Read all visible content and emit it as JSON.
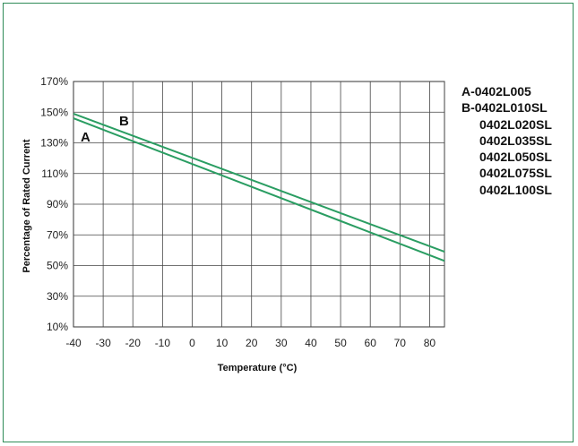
{
  "chart_data": {
    "type": "line",
    "xlabel": "Temperature (°C)",
    "ylabel": "Percentage of Rated Current",
    "xlim": [
      -40,
      85
    ],
    "ylim": [
      10,
      170
    ],
    "xticks": [
      -40,
      -30,
      -20,
      -10,
      0,
      10,
      20,
      30,
      40,
      50,
      60,
      70,
      80
    ],
    "yticks": [
      10,
      30,
      50,
      70,
      90,
      110,
      130,
      150,
      170
    ],
    "ytick_suffix": "%",
    "grid": true,
    "series": [
      {
        "name": "A",
        "x": [
          -40,
          85
        ],
        "y": [
          146,
          53
        ],
        "color": "#2a9d62"
      },
      {
        "name": "B",
        "x": [
          -40,
          85
        ],
        "y": [
          149,
          59
        ],
        "color": "#2a9d62"
      }
    ],
    "legend": {
      "placement": "right",
      "entries": [
        "A-0402L005",
        "B-0402L010SL",
        "0402L020SL",
        "0402L035SL",
        "0402L050SL",
        "0402L075SL",
        "0402L100SL"
      ]
    }
  }
}
